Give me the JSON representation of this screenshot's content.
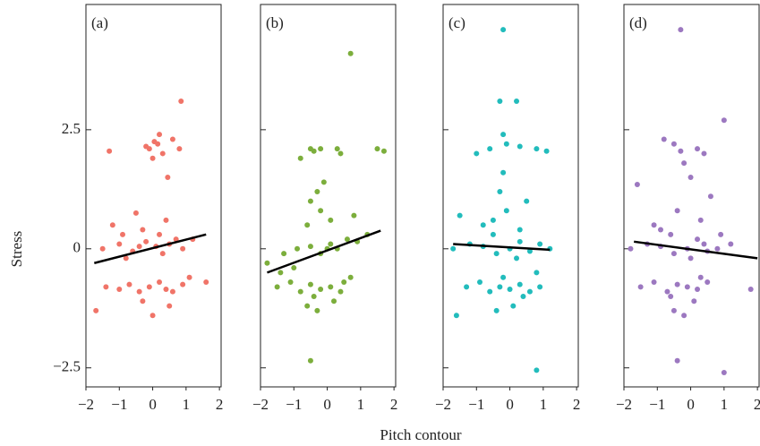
{
  "chart_data": {
    "type": "scatter",
    "xlabel": "Pitch contour",
    "ylabel": "Stress",
    "xlim": [
      -2,
      2.05
    ],
    "ylim": [
      -2.9,
      5.13
    ],
    "xticks": [
      {
        "value": -2,
        "label": "−2"
      },
      {
        "value": -1,
        "label": "−1"
      },
      0,
      1,
      2
    ],
    "yticks": [
      {
        "value": -2.5,
        "label": "−2.5"
      },
      0,
      2.5
    ],
    "panels": [
      {
        "label": "(a)",
        "color": "#f07468",
        "x": [
          0.85,
          0.2,
          0.05,
          -0.1,
          0.3,
          0.6,
          -1.3,
          0.15,
          0.0,
          -0.2,
          0.45,
          0.8,
          -1.2,
          -0.5,
          -0.3,
          0.4,
          0.7,
          -0.9,
          -1.5,
          -1.0,
          -0.6,
          -0.2,
          0.1,
          0.3,
          0.5,
          0.9,
          1.2,
          -0.8,
          -0.4,
          0.2,
          -1.4,
          -1.0,
          -0.7,
          -0.4,
          -0.1,
          0.2,
          0.4,
          0.6,
          0.9,
          1.6,
          -1.7,
          0.0,
          -0.3,
          0.5,
          1.1
        ],
        "y": [
          3.1,
          2.4,
          2.25,
          2.1,
          2.0,
          2.3,
          2.05,
          2.2,
          1.9,
          2.15,
          1.5,
          2.1,
          0.5,
          0.75,
          0.4,
          0.6,
          0.2,
          0.3,
          0.0,
          0.1,
          -0.05,
          0.15,
          0.05,
          -0.1,
          0.1,
          0.0,
          0.2,
          -0.2,
          0.05,
          0.3,
          -0.8,
          -0.85,
          -0.75,
          -0.9,
          -0.8,
          -0.7,
          -0.85,
          -0.9,
          -0.75,
          -0.7,
          -1.3,
          -1.4,
          -1.1,
          -1.2,
          -0.6
        ],
        "fit": {
          "x": [
            -1.75,
            1.6
          ],
          "y": [
            -0.3,
            0.3
          ]
        }
      },
      {
        "label": "(b)",
        "color": "#7cae3c",
        "x": [
          0.7,
          -0.5,
          -0.4,
          -0.2,
          0.3,
          0.4,
          1.5,
          1.7,
          -0.8,
          -0.1,
          -0.5,
          -0.2,
          0.1,
          -0.6,
          0.8,
          -0.3,
          -1.8,
          -1.3,
          -0.9,
          -0.5,
          -0.2,
          0.1,
          0.3,
          0.6,
          0.9,
          1.2,
          -1.0,
          0.0,
          -1.5,
          -1.1,
          -0.8,
          -0.5,
          -0.2,
          0.1,
          0.4,
          0.7,
          -0.6,
          -0.3,
          0.2,
          -0.4,
          -1.4,
          0.5,
          -0.5
        ],
        "y": [
          4.1,
          2.1,
          2.05,
          2.1,
          2.1,
          2.0,
          2.1,
          2.05,
          1.9,
          1.4,
          1.0,
          0.8,
          0.6,
          0.5,
          0.7,
          1.2,
          -0.3,
          -0.1,
          0.0,
          0.05,
          -0.1,
          0.1,
          0.0,
          0.2,
          0.15,
          0.3,
          -0.4,
          0.0,
          -0.8,
          -0.7,
          -0.9,
          -0.75,
          -0.85,
          -0.8,
          -0.9,
          -0.6,
          -1.2,
          -1.3,
          -1.1,
          -1.0,
          -0.5,
          -0.7,
          -2.35
        ],
        "fit": {
          "x": [
            -1.8,
            1.6
          ],
          "y": [
            -0.5,
            0.38
          ]
        }
      },
      {
        "label": "(c)",
        "color": "#22bcbc",
        "x": [
          -0.2,
          -0.3,
          0.2,
          -0.2,
          -0.1,
          0.3,
          0.8,
          -0.6,
          -1.0,
          1.1,
          -0.2,
          -0.5,
          -0.1,
          0.3,
          -0.8,
          0.5,
          -1.5,
          -0.3,
          -1.7,
          -1.2,
          -0.8,
          -0.4,
          0.0,
          0.3,
          0.6,
          0.9,
          1.2,
          -0.5,
          0.2,
          -1.6,
          -1.3,
          -0.9,
          -0.6,
          -0.3,
          0.0,
          0.3,
          0.6,
          0.9,
          -0.4,
          0.1,
          0.4,
          -0.2,
          0.8,
          0.8
        ],
        "y": [
          4.6,
          3.1,
          3.1,
          2.4,
          2.2,
          2.15,
          2.1,
          2.1,
          2.0,
          2.05,
          1.6,
          0.6,
          0.8,
          0.4,
          0.5,
          1.0,
          0.7,
          1.2,
          0.0,
          0.1,
          0.05,
          -0.1,
          0.0,
          0.15,
          -0.05,
          0.1,
          0.0,
          0.3,
          -0.2,
          -1.4,
          -0.8,
          -0.7,
          -0.9,
          -0.8,
          -0.85,
          -0.75,
          -0.9,
          -0.8,
          -1.3,
          -1.2,
          -1.0,
          -0.6,
          -0.5,
          -2.55
        ],
        "fit": {
          "x": [
            -1.7,
            1.2
          ],
          "y": [
            0.1,
            -0.02
          ]
        }
      },
      {
        "label": "(d)",
        "color": "#9c78c0",
        "x": [
          -0.3,
          1.0,
          -0.8,
          -0.5,
          -0.3,
          0.2,
          0.4,
          -1.6,
          0.0,
          -0.2,
          -0.9,
          0.6,
          -0.4,
          -1.1,
          0.3,
          0.9,
          -1.8,
          -1.3,
          -0.9,
          -0.5,
          -0.1,
          0.2,
          0.5,
          0.8,
          1.2,
          -0.6,
          0.0,
          0.4,
          -1.5,
          -1.1,
          -0.7,
          -0.4,
          -0.1,
          0.2,
          0.5,
          -0.5,
          -0.2,
          0.1,
          1.8,
          -0.6,
          0.3,
          -0.4,
          1.0
        ],
        "y": [
          4.6,
          2.7,
          2.3,
          2.2,
          2.05,
          2.1,
          2.0,
          1.35,
          1.5,
          1.8,
          0.4,
          1.1,
          0.8,
          0.5,
          0.6,
          0.3,
          0.0,
          0.1,
          0.05,
          -0.1,
          0.0,
          0.2,
          -0.05,
          0.0,
          0.1,
          0.3,
          -0.2,
          0.1,
          -0.8,
          -0.7,
          -0.9,
          -0.75,
          -0.8,
          -0.85,
          -0.7,
          -1.3,
          -1.4,
          -1.1,
          -0.85,
          -1.0,
          -0.6,
          -2.35,
          -2.6
        ],
        "fit": {
          "x": [
            -1.7,
            2.0
          ],
          "y": [
            0.15,
            -0.2
          ]
        }
      }
    ]
  }
}
